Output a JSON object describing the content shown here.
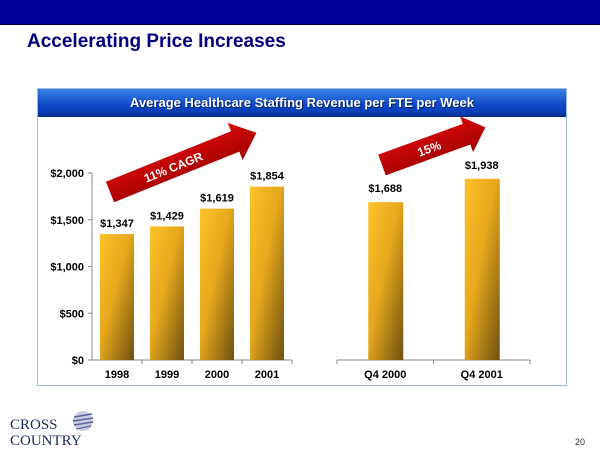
{
  "slide": {
    "title": "Accelerating Price Increases",
    "page_number": "20",
    "logo": {
      "line1": "CROSS",
      "line2": "COUNTRY",
      "icon": "globe-stripes-icon"
    }
  },
  "panel": {
    "header": "Average Healthcare Staffing Revenue per FTE per Week"
  },
  "colors": {
    "topbar": "#000099",
    "title": "#000080",
    "bar_light": "#f8bc22",
    "bar_dark": "#7a5a10",
    "arrow": "#c00000",
    "panel_border": "#9dbce6"
  },
  "chart_data": [
    {
      "type": "bar",
      "title": "Average Healthcare Staffing Revenue per FTE per Week",
      "categories": [
        "1998",
        "1999",
        "2000",
        "2001"
      ],
      "values": [
        1347,
        1429,
        1619,
        1854
      ],
      "data_labels": [
        "$1,347",
        "$1,429",
        "$1,619",
        "$1,854"
      ],
      "ylim": [
        0,
        2000
      ],
      "yticks": [
        0,
        500,
        1000,
        1500,
        2000
      ],
      "ytick_labels": [
        "$0",
        "$500",
        "$1,000",
        "$1,500",
        "$2,000"
      ],
      "xlabel": "",
      "ylabel": "",
      "grid": false,
      "annotation": "11% CAGR"
    },
    {
      "type": "bar",
      "categories": [
        "Q4 2000",
        "Q4 2001"
      ],
      "values": [
        1688,
        1938
      ],
      "data_labels": [
        "$1,688",
        "$1,938"
      ],
      "ylim": [
        0,
        2000
      ],
      "grid": false,
      "annotation": "15%"
    }
  ]
}
